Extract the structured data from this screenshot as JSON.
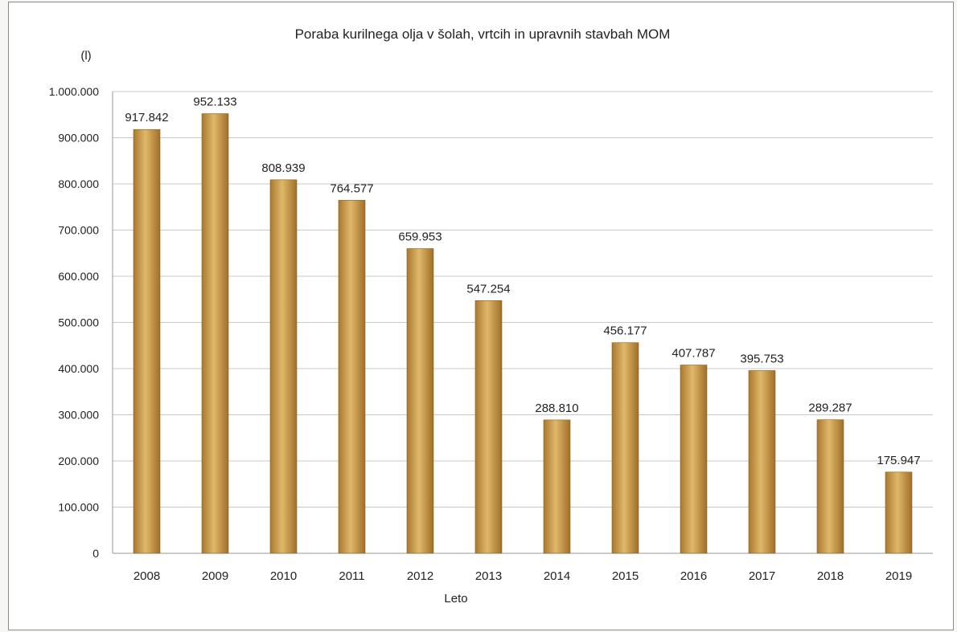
{
  "chart_data": {
    "type": "bar",
    "title": "Poraba kurilnega olja v šolah,  vrtcih in upravnih stavbah MOM",
    "ylabel": "(l)",
    "xlabel": "Leto",
    "categories": [
      "2008",
      "2009",
      "2010",
      "2011",
      "2012",
      "2013",
      "2014",
      "2015",
      "2016",
      "2017",
      "2018",
      "2019"
    ],
    "values": [
      917842,
      952133,
      808939,
      764577,
      659953,
      547254,
      288810,
      456177,
      407787,
      395753,
      289287,
      175947
    ],
    "value_labels": [
      "917.842",
      "952.133",
      "808.939",
      "764.577",
      "659.953",
      "547.254",
      "288.810",
      "456.177",
      "407.787",
      "395.753",
      "289.287",
      "175.947"
    ],
    "ylim": [
      0,
      1000000
    ],
    "yticks": [
      0,
      100000,
      200000,
      300000,
      400000,
      500000,
      600000,
      700000,
      800000,
      900000,
      1000000
    ],
    "ytick_labels": [
      "0",
      "100.000",
      "200.000",
      "300.000",
      "400.000",
      "500.000",
      "600.000",
      "700.000",
      "800.000",
      "900.000",
      "1.000.000"
    ],
    "grid": true,
    "legend": "none",
    "bar_color": "#c49a4e"
  }
}
